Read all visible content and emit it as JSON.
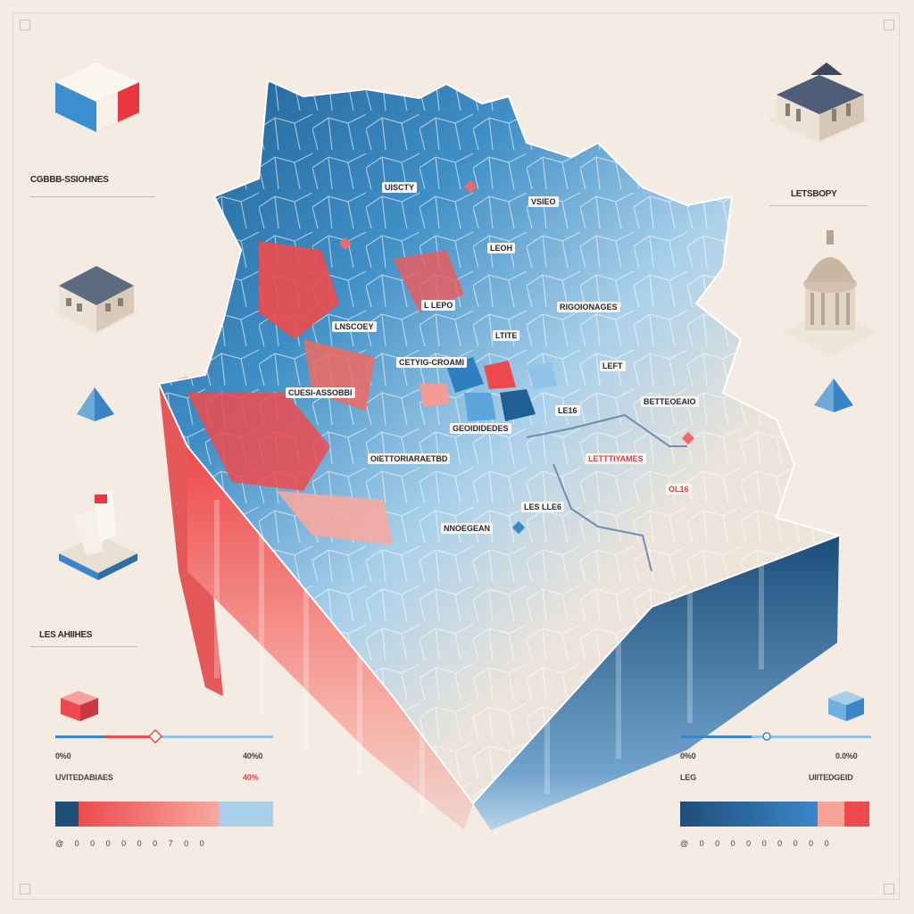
{
  "left_panel": {
    "title_label": "CGBBB-SSIOHNES",
    "bottom_label": "LES AHIIHES",
    "range_left": "0%0",
    "range_right": "40%0",
    "legend_caption": "UVITEDABIAES",
    "legend_caption_value": "40%",
    "scale_ticks": "@ 0 0 0 0 0 0 7 0 0"
  },
  "right_panel": {
    "title_label": "LETSBOPY",
    "range_left": "0%0",
    "range_right": "0.0%0",
    "legend_caption_left": "LEG",
    "legend_caption_right": "UIITEDGEID",
    "scale_ticks": "@ 0 0 0 0 0 0 0 0 0"
  },
  "map_labels": {
    "l1": "UISCTY",
    "l2": "VSIEO",
    "l3": "LEOH",
    "l4": "L LEPO",
    "l5": "RIGOIONAGES",
    "l6": "LNSCOEY",
    "l7": "LTITE",
    "l8": "CETYIG-CROAMI",
    "l9": "LEFT",
    "l10": "CUESI-ASSOBBI",
    "l11": "BETTEOEAIO",
    "l12": "LE16",
    "l13": "GEOIDIDEDES",
    "l14": "LETTTIYAMES",
    "l15": "OIETTORIARAETBD",
    "l16": "OL16",
    "l17": "LES LLE6",
    "l18": "NNOEGEAN"
  },
  "colors": {
    "navy": "#1f4e79",
    "blue": "#3b82b8",
    "light_blue": "#a9d0ea",
    "red": "#ee4a4d",
    "salmon": "#f6a39a",
    "cream": "#f4ebe2"
  }
}
